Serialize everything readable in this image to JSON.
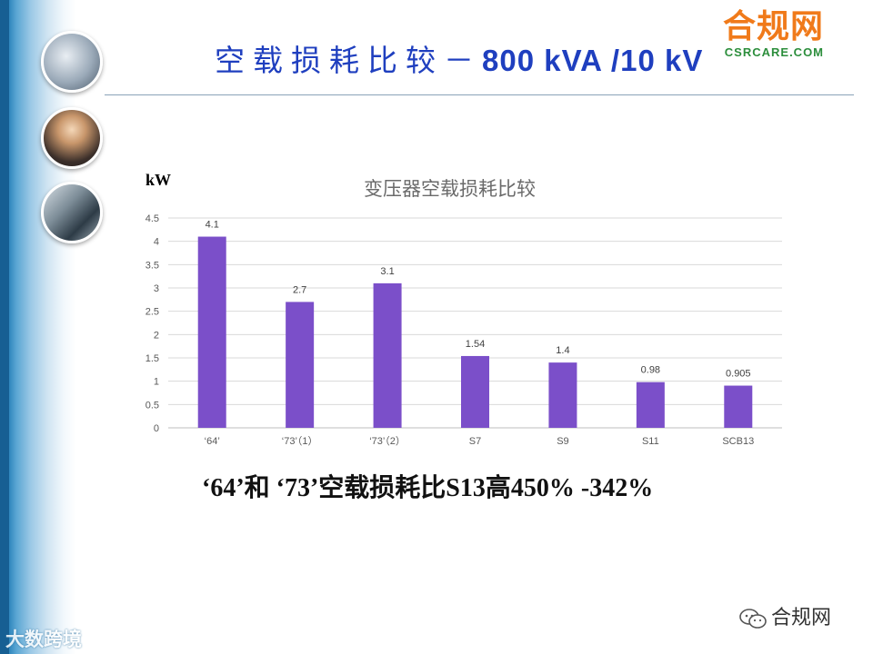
{
  "slide": {
    "title_cn": "空载损耗比较－",
    "title_en": "800 kVA /10 kV",
    "logo_cn": "合规网",
    "logo_en": "CSRCARE.COM",
    "unit_label": "kW",
    "conclusion": "‘64’和 ‘73’空载损耗比S13高450% -342%",
    "watermark_left": "大数跨境",
    "watermark_right": "合规网"
  },
  "chart_data": {
    "type": "bar",
    "title": "变压器空载损耗比较",
    "categories": [
      "‘64’",
      "‘73’（1）",
      "‘73’（2）",
      "S7",
      "S9",
      "S11",
      "SCB13"
    ],
    "values": [
      4.1,
      2.7,
      3.1,
      1.54,
      1.4,
      0.98,
      0.905
    ],
    "ylim": [
      0,
      4.5
    ],
    "yticks": [
      0,
      0.5,
      1,
      1.5,
      2,
      2.5,
      3,
      3.5,
      4,
      4.5
    ],
    "grid": true,
    "bar_color": "#7b4fc9"
  }
}
